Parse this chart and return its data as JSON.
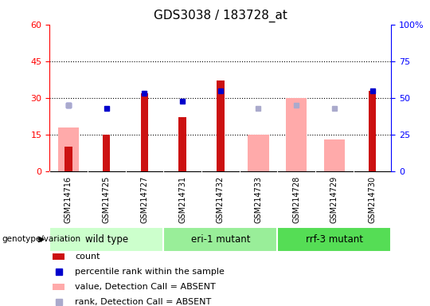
{
  "title": "GDS3038 / 183728_at",
  "samples": [
    "GSM214716",
    "GSM214725",
    "GSM214727",
    "GSM214731",
    "GSM214732",
    "GSM214733",
    "GSM214728",
    "GSM214729",
    "GSM214730"
  ],
  "groups": [
    {
      "label": "wild type",
      "indices": [
        0,
        1,
        2
      ]
    },
    {
      "label": "eri-1 mutant",
      "indices": [
        3,
        4,
        5
      ]
    },
    {
      "label": "rrf-3 mutant",
      "indices": [
        6,
        7,
        8
      ]
    }
  ],
  "count": [
    10,
    15,
    32,
    22,
    37,
    0,
    0,
    0,
    33
  ],
  "percentile": [
    45,
    43,
    53,
    48,
    55,
    0,
    0,
    0,
    55
  ],
  "value_absent": [
    18,
    0,
    0,
    0,
    0,
    15,
    30,
    13,
    0
  ],
  "rank_absent": [
    45,
    0,
    0,
    0,
    0,
    43,
    45,
    43,
    0
  ],
  "ylim_left": [
    0,
    60
  ],
  "ylim_right": [
    0,
    100
  ],
  "yticks_left": [
    0,
    15,
    30,
    45,
    60
  ],
  "yticks_right": [
    0,
    25,
    50,
    75,
    100
  ],
  "color_count": "#cc1111",
  "color_value_absent": "#ffaaaa",
  "color_percentile": "#0000cc",
  "color_rank_absent": "#aaaacc",
  "group_colors": [
    "#ccffcc",
    "#99ee99",
    "#55dd55"
  ],
  "group_border_color": "white",
  "grid_color": "black",
  "sample_bg": "#cccccc"
}
